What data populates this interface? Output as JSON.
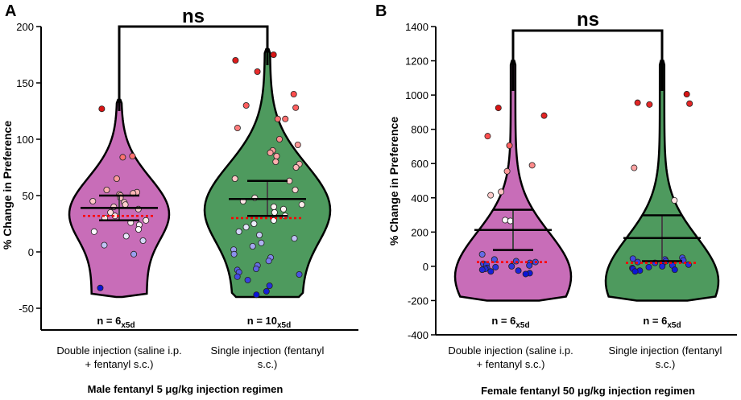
{
  "chart_data": [
    {
      "type": "violin",
      "panel_label": "A",
      "ylabel": "% Change in Preference",
      "xlabel": "Male fentanyl 5 μg/kg injection regimen",
      "ylim": [
        -60,
        200
      ],
      "yticks": [
        -50,
        0,
        50,
        100,
        150,
        200
      ],
      "significance": "ns",
      "colors": {
        "violin1": "#c86db8",
        "violin2": "#4e9a5e",
        "median": "#ff0000"
      },
      "groups": [
        {
          "name": "Double injection (saline i.p. + fentanyl s.c.)",
          "label_lines": [
            "Double injection (saline i.p.",
            "+ fentanyl s.c.)"
          ],
          "n_label": "n = 6",
          "n_sub": "x5d",
          "range": [
            -40,
            135
          ],
          "mean": 39,
          "sem_upper": 50,
          "sem_lower": 28,
          "median": 32,
          "points": [
            127,
            85,
            84,
            65,
            55,
            53,
            52,
            51,
            50,
            48,
            45,
            44,
            42,
            40,
            38,
            35,
            32,
            30,
            28,
            26,
            24,
            20,
            18,
            14,
            10,
            6,
            -2,
            -32
          ]
        },
        {
          "name": "Single injection (fentanyl s.c.)",
          "label_lines": [
            "Single injection (fentanyl",
            "s.c.)"
          ],
          "n_label": "n = 10",
          "n_sub": "x5d",
          "range": [
            -40,
            180
          ],
          "mean": 47,
          "sem_upper": 63,
          "sem_lower": 32,
          "median": 30,
          "points": [
            175,
            170,
            160,
            140,
            130,
            128,
            118,
            118,
            110,
            100,
            95,
            90,
            88,
            85,
            80,
            78,
            75,
            65,
            63,
            55,
            48,
            45,
            42,
            40,
            38,
            35,
            32,
            28,
            25,
            22,
            18,
            15,
            12,
            8,
            5,
            2,
            -2,
            -5,
            -8,
            -12,
            -15,
            -16,
            -18,
            -20,
            -22,
            -25,
            -30,
            -35,
            -38
          ]
        }
      ]
    },
    {
      "type": "violin",
      "panel_label": "B",
      "ylabel": "% Change in Preference",
      "xlabel": "Female fentanyl 50 μg/kg injection regimen",
      "ylim": [
        -400,
        1400
      ],
      "yticks": [
        -400,
        -200,
        0,
        200,
        400,
        600,
        800,
        1000,
        1200,
        1400
      ],
      "significance": "ns",
      "colors": {
        "violin1": "#c86db8",
        "violin2": "#4e9a5e",
        "median": "#ff0000"
      },
      "groups": [
        {
          "name": "Double injection (saline i.p. + fentanyl s.c.)",
          "label_lines": [
            "Double injection (saline i.p.",
            "+ fentanyl s.c.)"
          ],
          "n_label": "n = 6",
          "n_sub": "x5d",
          "range": [
            -200,
            1200
          ],
          "mean": 212,
          "sem_upper": 330,
          "sem_lower": 95,
          "median": 25,
          "points": [
            925,
            880,
            760,
            705,
            590,
            555,
            435,
            415,
            270,
            265,
            70,
            40,
            30,
            25,
            20,
            15,
            10,
            5,
            0,
            -5,
            -10,
            -15,
            -20,
            -25,
            -30,
            -40,
            -45
          ]
        },
        {
          "name": "Single injection (fentanyl s.c.)",
          "label_lines": [
            "Single injection (fentanyl",
            "s.c.)"
          ],
          "n_label": "n = 6",
          "n_sub": "x5d",
          "range": [
            -200,
            1200
          ],
          "mean": 165,
          "sem_upper": 298,
          "sem_lower": 30,
          "median": 20,
          "points": [
            1005,
            955,
            950,
            945,
            575,
            385,
            50,
            45,
            40,
            35,
            30,
            25,
            20,
            15,
            10,
            5,
            0,
            -5,
            -10,
            -15,
            -20,
            -25,
            -30
          ]
        }
      ]
    }
  ]
}
